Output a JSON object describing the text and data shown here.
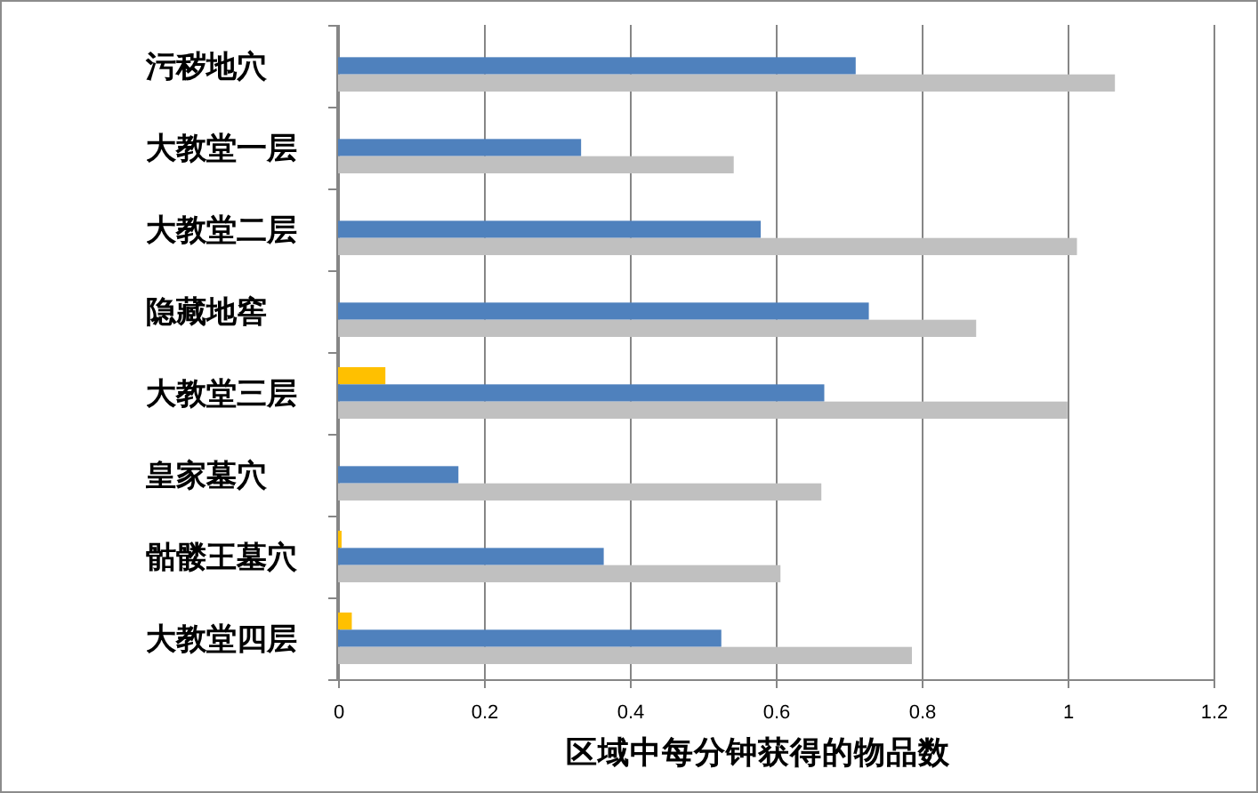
{
  "chart_data": {
    "type": "bar",
    "orientation": "horizontal",
    "categories": [
      "污秽地穴",
      "大教堂一层",
      "大教堂二层",
      "隐藏地窖",
      "大教堂三层",
      "皇家墓穴",
      "骷髅王墓穴",
      "大教堂四层"
    ],
    "xlabel": "区域中每分钟获得的物品数",
    "xlim": [
      0,
      1.2
    ],
    "xticks": [
      0,
      0.2,
      0.4,
      0.6,
      0.8,
      1,
      1.2
    ],
    "grid": "x",
    "series": [
      {
        "color": "#ffc000",
        "values": [
          null,
          null,
          null,
          null,
          0.066,
          null,
          0.006,
          0.02
        ]
      },
      {
        "color": "#4f81bd",
        "values": [
          0.71,
          0.334,
          0.58,
          0.728,
          0.667,
          0.166,
          0.365,
          0.526
        ]
      },
      {
        "color": "#c0c0c0",
        "values": [
          1.065,
          0.543,
          1.013,
          0.875,
          1.0,
          0.663,
          0.607,
          0.787
        ]
      }
    ]
  }
}
